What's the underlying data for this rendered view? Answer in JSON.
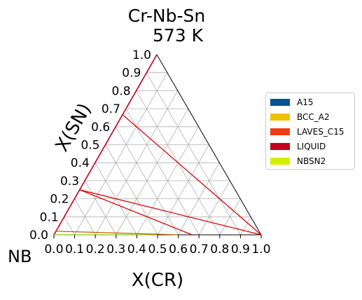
{
  "chart_data": {
    "type": "ternary",
    "title": "Cr-Nb-Sn",
    "subtitle": "573  K",
    "corner_label": "NB",
    "xlabel": "X(CR)",
    "ylabel": "X(SN)",
    "x_ticks": [
      "0.0",
      "0.1",
      "0.2",
      "0.3",
      "0.4",
      "0.5",
      "0.6",
      "0.7",
      "0.8",
      "0.9",
      "1.0"
    ],
    "y_ticks": [
      "0.0",
      "0.1",
      "0.2",
      "0.3",
      "0.4",
      "0.5",
      "0.6",
      "0.7",
      "0.8",
      "0.9",
      "1.0"
    ],
    "xlim": [
      0,
      1
    ],
    "ylim": [
      0,
      1
    ],
    "grid": true,
    "legend_position": "right",
    "legend": [
      {
        "name": "A15",
        "color": "#005493"
      },
      {
        "name": "BCC_A2",
        "color": "#f0c000"
      },
      {
        "name": "LAVES_C15",
        "color": "#f03c14"
      },
      {
        "name": "LIQUID",
        "color": "#c0001e"
      },
      {
        "name": "NBSN2",
        "color": "#d4f000"
      }
    ],
    "tie_lines": [
      {
        "from": [
          0.0,
          0.25
        ],
        "to": [
          0.667,
          0.0
        ],
        "color": "#e00000"
      },
      {
        "from": [
          0.0,
          0.25
        ],
        "to": [
          1.0,
          0.0
        ],
        "color": "#e00000"
      },
      {
        "from": [
          0.0,
          0.667
        ],
        "to": [
          1.0,
          0.0
        ],
        "color": "#e00000"
      },
      {
        "from": [
          0.0,
          0.02
        ],
        "to": [
          0.6,
          0.0
        ],
        "color": "#c06000"
      }
    ],
    "edge_lines": [
      {
        "from": [
          0.0,
          0.0
        ],
        "to": [
          0.0,
          1.0
        ],
        "color": "#c0001e"
      },
      {
        "from": [
          0.0,
          0.0
        ],
        "to": [
          0.5,
          0.0
        ],
        "color": "#9acd32"
      }
    ]
  }
}
